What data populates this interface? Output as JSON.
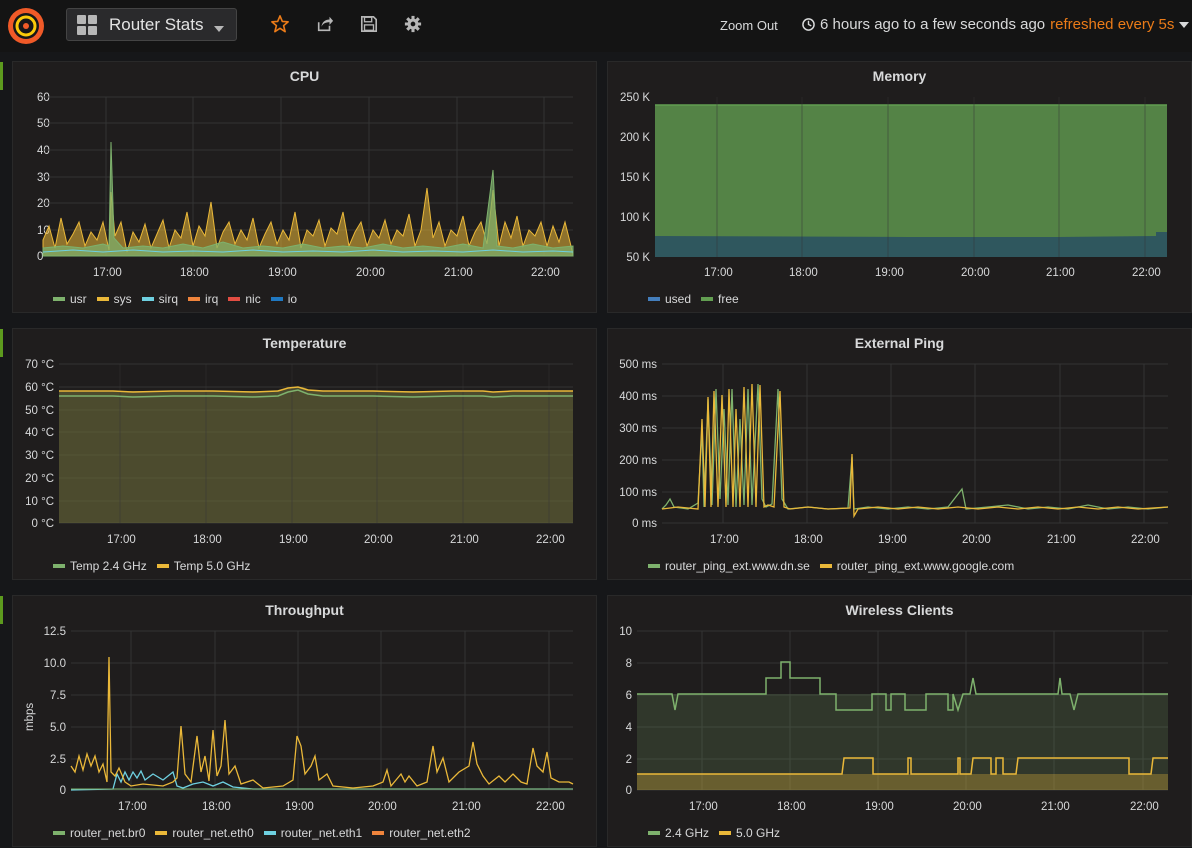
{
  "nav": {
    "dashboard_title": "Router Stats",
    "zoom_out": "Zoom Out",
    "time_range": "6 hours ago to a few seconds ago",
    "refresh": "refreshed every 5s",
    "icons": [
      "grafana-logo-icon",
      "dashboard-grid-icon",
      "star-icon",
      "share-icon",
      "save-icon",
      "settings-gear-icon",
      "clock-icon",
      "caret-down-icon"
    ],
    "accent": "#eb7b18"
  },
  "panels": {
    "cpu": {
      "title": "CPU",
      "legend": [
        {
          "name": "usr",
          "color": "#7eb26d"
        },
        {
          "name": "sys",
          "color": "#eab839"
        },
        {
          "name": "sirq",
          "color": "#6ed0e0"
        },
        {
          "name": "irq",
          "color": "#ef843c"
        },
        {
          "name": "nic",
          "color": "#e24d42"
        },
        {
          "name": "io",
          "color": "#1f78c1"
        }
      ]
    },
    "memory": {
      "title": "Memory",
      "legend": [
        {
          "name": "used",
          "color": "#447ebc"
        },
        {
          "name": "free",
          "color": "#629e51"
        }
      ]
    },
    "temperature": {
      "title": "Temperature",
      "legend": [
        {
          "name": "Temp 2.4 GHz",
          "color": "#7eb26d"
        },
        {
          "name": "Temp 5.0 GHz",
          "color": "#eab839"
        }
      ]
    },
    "ping": {
      "title": "External Ping",
      "legend": [
        {
          "name": "router_ping_ext.www.dn.se",
          "color": "#7eb26d"
        },
        {
          "name": "router_ping_ext.www.google.com",
          "color": "#eab839"
        }
      ]
    },
    "throughput": {
      "title": "Throughput",
      "legend": [
        {
          "name": "router_net.br0",
          "color": "#7eb26d"
        },
        {
          "name": "router_net.eth0",
          "color": "#eab839"
        },
        {
          "name": "router_net.eth1",
          "color": "#6ed0e0"
        },
        {
          "name": "router_net.eth2",
          "color": "#ef843c"
        }
      ]
    },
    "wireless": {
      "title": "Wireless Clients",
      "legend": [
        {
          "name": "2.4 GHz",
          "color": "#7eb26d"
        },
        {
          "name": "5.0 GHz",
          "color": "#eab839"
        }
      ]
    }
  },
  "chart_data": [
    {
      "id": "cpu",
      "type": "area",
      "title": "CPU",
      "x_ticks": [
        "17:00",
        "18:00",
        "19:00",
        "20:00",
        "21:00",
        "22:00"
      ],
      "y_ticks": [
        "60",
        "50",
        "40",
        "30",
        "20",
        "10",
        "0"
      ],
      "ylim": [
        0,
        60
      ],
      "series": [
        {
          "name": "usr",
          "peak_values": [
            50,
            30,
            18,
            22,
            33,
            20
          ],
          "baseline": [
            2,
            12
          ]
        },
        {
          "name": "sys",
          "peak_values": [
            25,
            20,
            18,
            20,
            25,
            15
          ],
          "baseline": [
            2,
            12
          ]
        },
        {
          "name": "sirq",
          "peak_values": [
            5,
            4,
            4,
            4,
            4,
            4
          ]
        },
        {
          "name": "irq",
          "peak_values": [
            1,
            1,
            1,
            1,
            1,
            1
          ]
        },
        {
          "name": "nic",
          "peak_values": [
            0,
            0,
            0,
            0,
            0,
            0
          ]
        },
        {
          "name": "io",
          "peak_values": [
            0,
            0,
            0,
            0,
            0,
            0
          ]
        }
      ]
    },
    {
      "id": "memory",
      "type": "area",
      "title": "Memory",
      "x_ticks": [
        "17:00",
        "18:00",
        "19:00",
        "20:00",
        "21:00",
        "22:00"
      ],
      "y_ticks": [
        "250 K",
        "200 K",
        "150 K",
        "100 K",
        "50 K"
      ],
      "ylim": [
        50000,
        250000
      ],
      "series": [
        {
          "name": "used",
          "values": [
            74000,
            74000,
            74000,
            74500,
            75000,
            75500,
            80000
          ]
        },
        {
          "name": "free",
          "values": [
            240000,
            240000,
            240000,
            240000,
            240000,
            240000,
            240000
          ]
        }
      ]
    },
    {
      "id": "temperature",
      "type": "area",
      "title": "Temperature",
      "x_ticks": [
        "17:00",
        "18:00",
        "19:00",
        "20:00",
        "21:00",
        "22:00"
      ],
      "y_ticks": [
        "70 °C",
        "60 °C",
        "50 °C",
        "40 °C",
        "30 °C",
        "20 °C",
        "10 °C",
        "0 °C"
      ],
      "ylim": [
        0,
        70
      ],
      "series": [
        {
          "name": "Temp 2.4 GHz",
          "values": [
            55,
            55,
            55,
            55,
            57,
            55,
            55,
            55,
            55,
            55
          ]
        },
        {
          "name": "Temp 5.0 GHz",
          "values": [
            57,
            57,
            57,
            57,
            59,
            57,
            57,
            57,
            57,
            57
          ]
        }
      ]
    },
    {
      "id": "ping",
      "type": "line",
      "title": "External Ping",
      "x_ticks": [
        "17:00",
        "18:00",
        "19:00",
        "20:00",
        "21:00",
        "22:00"
      ],
      "y_ticks": [
        "500 ms",
        "400 ms",
        "300 ms",
        "200 ms",
        "100 ms",
        "0 ms"
      ],
      "ylim": [
        0,
        500
      ],
      "series": [
        {
          "name": "router_ping_ext.www.dn.se",
          "baseline": 45,
          "peaks": [
            [
              16.8,
              420
            ],
            [
              17.4,
              430
            ],
            [
              17.8,
              410
            ],
            [
              18.6,
              215
            ],
            [
              19.9,
              110
            ]
          ]
        },
        {
          "name": "router_ping_ext.www.google.com",
          "baseline": 45,
          "peaks": [
            [
              16.8,
              400
            ],
            [
              17.2,
              410
            ],
            [
              17.5,
              430
            ],
            [
              17.8,
              410
            ],
            [
              18.6,
              215
            ]
          ]
        }
      ]
    },
    {
      "id": "throughput",
      "type": "line",
      "title": "Throughput",
      "ylabel": "mbps",
      "x_ticks": [
        "17:00",
        "18:00",
        "19:00",
        "20:00",
        "21:00",
        "22:00"
      ],
      "y_ticks": [
        "12.5",
        "10.0",
        "7.5",
        "5.0",
        "2.5",
        "0"
      ],
      "ylim": [
        0,
        12.5
      ],
      "series": [
        {
          "name": "router_net.br0",
          "values": [
            0.1,
            0.1,
            0.1,
            0.1,
            0.1,
            0.1
          ]
        },
        {
          "name": "router_net.eth0",
          "peaks": [
            [
              16.45,
              10.5
            ],
            [
              17.6,
              5
            ],
            [
              17.9,
              4.8
            ],
            [
              18.2,
              4.5
            ],
            [
              19.1,
              4.8
            ],
            [
              19.3,
              3.2
            ],
            [
              20.6,
              2.9
            ],
            [
              21.25,
              3.9
            ],
            [
              21.9,
              3.5
            ],
            [
              22.0,
              2.8
            ]
          ]
        },
        {
          "name": "router_net.eth1",
          "values": [
            1.5,
            1.3,
            0.2,
            0.1,
            0.1,
            0.1
          ]
        },
        {
          "name": "router_net.eth2",
          "values": [
            0,
            0,
            0,
            0,
            0,
            0
          ]
        }
      ]
    },
    {
      "id": "wireless",
      "type": "line",
      "title": "Wireless Clients",
      "x_ticks": [
        "17:00",
        "18:00",
        "19:00",
        "20:00",
        "21:00",
        "22:00"
      ],
      "y_ticks": [
        "10",
        "8",
        "6",
        "4",
        "2",
        "0"
      ],
      "ylim": [
        0,
        10
      ],
      "series": [
        {
          "name": "2.4 GHz",
          "values": [
            6,
            6,
            5,
            6,
            7,
            8,
            7,
            6,
            5,
            5,
            6,
            5,
            6,
            5,
            6,
            7,
            6,
            6,
            6,
            6
          ]
        },
        {
          "name": "5.0 GHz",
          "values": [
            1,
            1,
            1,
            1,
            1,
            1,
            1,
            2,
            2,
            1,
            2,
            1,
            1,
            2,
            1,
            2,
            2,
            2,
            1,
            2
          ]
        }
      ]
    }
  ]
}
